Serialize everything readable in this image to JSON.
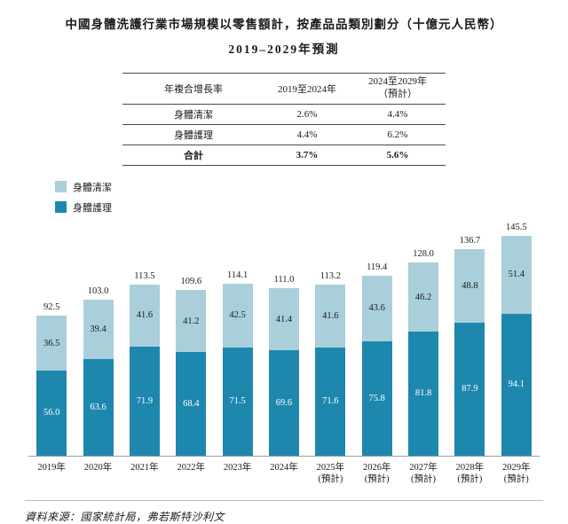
{
  "title": {
    "line1": "中國身體洗護行業市場規模以零售額計，按產品品類別劃分（十億元人民幣）",
    "line2": "2019–2029年預測"
  },
  "table": {
    "headers": [
      "年複合增長率",
      "2019至2024年",
      "2024至2029年\n（預計）"
    ],
    "rows": [
      [
        "身體清潔",
        "2.6%",
        "4.4%"
      ],
      [
        "身體護理",
        "4.4%",
        "6.2%"
      ]
    ],
    "total_row": [
      "合計",
      "3.7%",
      "5.6%"
    ]
  },
  "legend": [
    {
      "label": "身體清潔",
      "color": "#a9cfdb"
    },
    {
      "label": "身體護理",
      "color": "#1e87ae"
    }
  ],
  "chart_data": {
    "type": "bar",
    "stacked": true,
    "title": "中國身體洗護行業市場規模以零售額計，按產品品類別劃分（十億元人民幣）2019–2029年預測",
    "ylabel": "十億元人民幣",
    "ylim": [
      0,
      155
    ],
    "grid": false,
    "legend_position": "top-left",
    "categories": [
      "2019年",
      "2020年",
      "2021年",
      "2022年",
      "2023年",
      "2024年",
      "2025年\n(預計)",
      "2026年\n(預計)",
      "2027年\n(預計)",
      "2028年\n(預計)",
      "2029年\n(預計)"
    ],
    "series": [
      {
        "name": "身體護理",
        "color": "#1e87ae",
        "label_color": "#ffffff",
        "values": [
          56.0,
          63.6,
          71.9,
          68.4,
          71.5,
          69.6,
          71.6,
          75.8,
          81.8,
          87.9,
          94.1
        ]
      },
      {
        "name": "身體清潔",
        "color": "#a9cfdb",
        "label_color": "#1a1a1a",
        "values": [
          36.5,
          39.4,
          41.6,
          41.2,
          42.5,
          41.4,
          41.6,
          43.6,
          46.2,
          48.8,
          51.4
        ]
      }
    ],
    "totals": [
      92.5,
      103.0,
      113.5,
      109.6,
      114.1,
      111.0,
      113.2,
      119.4,
      128.0,
      136.7,
      145.5
    ]
  },
  "source": "資料來源：國家統計局，弗若斯特沙利文"
}
